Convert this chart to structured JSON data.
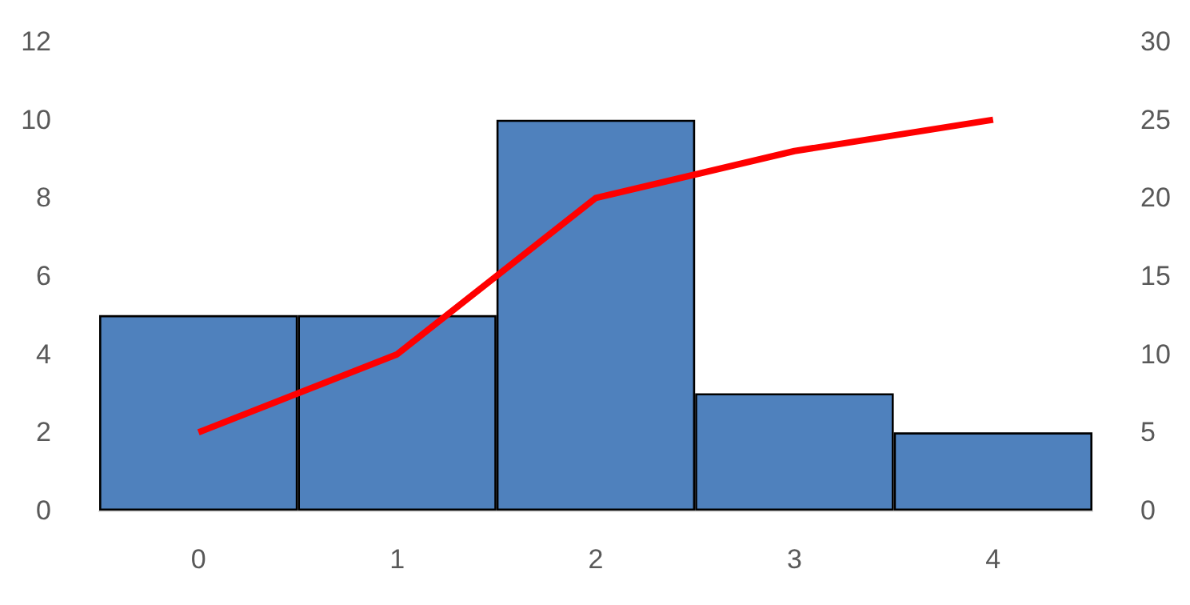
{
  "chart_data": {
    "type": "bar",
    "categories": [
      "0",
      "1",
      "2",
      "3",
      "4"
    ],
    "series": [
      {
        "color": "#4f81bd",
        "values": [
          5,
          5,
          10,
          3,
          2
        ]
      },
      {
        "type": "line",
        "axis": "y2",
        "color": "#ff0000",
        "values": [
          5,
          10,
          20,
          23,
          25
        ]
      }
    ],
    "ylim": [
      0,
      12
    ],
    "yticks": [
      0,
      2,
      4,
      6,
      8,
      10,
      12
    ],
    "y2lim": [
      0,
      30
    ],
    "y2ticks": [
      0,
      5,
      10,
      15,
      20,
      25,
      30
    ],
    "grid": false,
    "marker": "none"
  }
}
